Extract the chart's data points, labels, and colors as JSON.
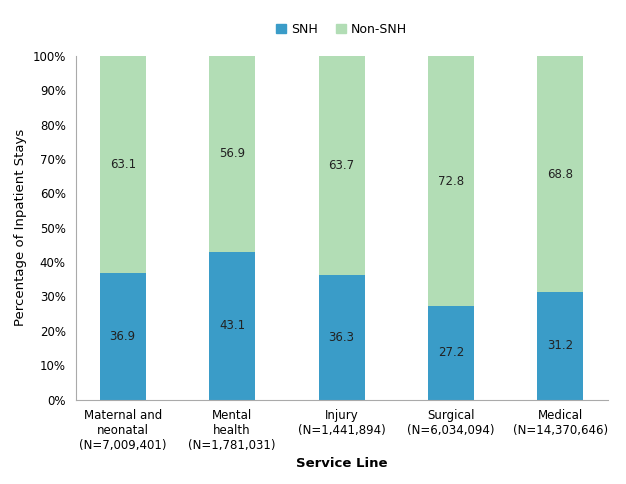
{
  "categories": [
    "Maternal and\nneonatal\n(N=7,009,401)",
    "Mental\nhealth\n(N=1,781,031)",
    "Injury\n(N=1,441,894)",
    "Surgical\n(N=6,034,094)",
    "Medical\n(N=14,370,646)"
  ],
  "snh_values": [
    36.9,
    43.1,
    36.3,
    27.2,
    31.2
  ],
  "non_snh_values": [
    63.1,
    56.9,
    63.7,
    72.8,
    68.8
  ],
  "snh_color": "#3A9CC8",
  "non_snh_color": "#B2DDB5",
  "snh_label": "SNH",
  "non_snh_label": "Non-SNH",
  "ylabel": "Percentage of Inpatient Stays",
  "xlabel": "Service Line",
  "ylim": [
    0,
    100
  ],
  "yticks": [
    0,
    10,
    20,
    30,
    40,
    50,
    60,
    70,
    80,
    90,
    100
  ],
  "ytick_labels": [
    "0%",
    "10%",
    "20%",
    "30%",
    "40%",
    "50%",
    "60%",
    "70%",
    "80%",
    "90%",
    "100%"
  ],
  "bar_width": 0.42,
  "text_color": "#222222",
  "annotation_fontsize": 8.5,
  "axis_label_fontsize": 9.5,
  "tick_label_fontsize": 8.5,
  "legend_fontsize": 9
}
